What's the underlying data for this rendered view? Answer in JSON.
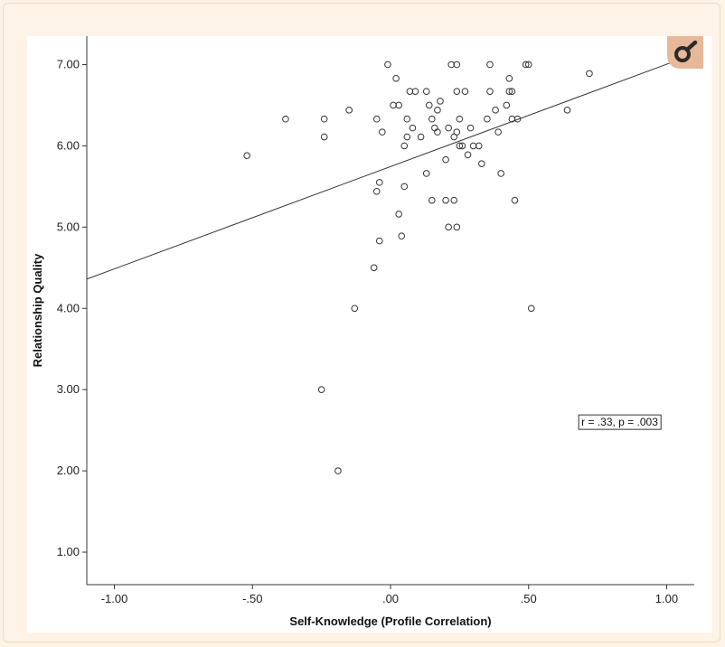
{
  "colors": {
    "page_bg": "#fdf3e7",
    "plot_bg": "#ffffff",
    "marker_stroke": "#333333",
    "line": "#333333",
    "badge_bg": "#e7b89a",
    "badge_icon": "#2a2a2a"
  },
  "icons": {
    "corner_badge": "magnifier-icon"
  },
  "chart_data": {
    "type": "scatter",
    "xlabel": "Self-Knowledge (Profile Correlation)",
    "ylabel": "Relationship Quality",
    "xlim": [
      -1.1,
      1.1
    ],
    "ylim": [
      0.6,
      7.35
    ],
    "x_ticks": [
      -1.0,
      -0.5,
      0.0,
      0.5,
      1.0
    ],
    "x_tick_labels": [
      "-1.00",
      "-.50",
      ".00",
      ".50",
      "1.00"
    ],
    "y_ticks": [
      1,
      2,
      3,
      4,
      5,
      6,
      7
    ],
    "y_tick_labels": [
      "1.00",
      "2.00",
      "3.00",
      "4.00",
      "5.00",
      "6.00",
      "7.00"
    ],
    "grid": false,
    "fit_line": {
      "x": [
        -1.1,
        1.1
      ],
      "y": [
        4.36,
        7.13
      ]
    },
    "annotation": "r = .33, p = .003",
    "annotation_position": {
      "x": 0.83,
      "y": 2.6
    },
    "points": [
      {
        "x": -0.52,
        "y": 5.88
      },
      {
        "x": -0.38,
        "y": 6.33
      },
      {
        "x": -0.24,
        "y": 6.33
      },
      {
        "x": -0.24,
        "y": 6.11
      },
      {
        "x": -0.25,
        "y": 3.0
      },
      {
        "x": -0.19,
        "y": 2.0
      },
      {
        "x": -0.15,
        "y": 6.44
      },
      {
        "x": -0.13,
        "y": 4.0
      },
      {
        "x": -0.06,
        "y": 4.5
      },
      {
        "x": -0.05,
        "y": 5.44
      },
      {
        "x": -0.04,
        "y": 5.55
      },
      {
        "x": -0.04,
        "y": 4.83
      },
      {
        "x": -0.05,
        "y": 6.33
      },
      {
        "x": -0.03,
        "y": 6.17
      },
      {
        "x": -0.01,
        "y": 7.0
      },
      {
        "x": 0.01,
        "y": 6.5
      },
      {
        "x": 0.02,
        "y": 6.83
      },
      {
        "x": 0.03,
        "y": 6.5
      },
      {
        "x": 0.03,
        "y": 5.16
      },
      {
        "x": 0.04,
        "y": 4.89
      },
      {
        "x": 0.05,
        "y": 5.5
      },
      {
        "x": 0.05,
        "y": 6.0
      },
      {
        "x": 0.06,
        "y": 6.11
      },
      {
        "x": 0.06,
        "y": 6.33
      },
      {
        "x": 0.07,
        "y": 6.67
      },
      {
        "x": 0.08,
        "y": 6.22
      },
      {
        "x": 0.09,
        "y": 6.67
      },
      {
        "x": 0.11,
        "y": 6.11
      },
      {
        "x": 0.13,
        "y": 5.66
      },
      {
        "x": 0.13,
        "y": 6.67
      },
      {
        "x": 0.14,
        "y": 6.5
      },
      {
        "x": 0.15,
        "y": 6.33
      },
      {
        "x": 0.15,
        "y": 5.33
      },
      {
        "x": 0.16,
        "y": 6.22
      },
      {
        "x": 0.17,
        "y": 6.44
      },
      {
        "x": 0.17,
        "y": 6.17
      },
      {
        "x": 0.18,
        "y": 6.55
      },
      {
        "x": 0.2,
        "y": 5.83
      },
      {
        "x": 0.2,
        "y": 5.33
      },
      {
        "x": 0.21,
        "y": 5.0
      },
      {
        "x": 0.21,
        "y": 6.22
      },
      {
        "x": 0.22,
        "y": 7.0
      },
      {
        "x": 0.23,
        "y": 6.11
      },
      {
        "x": 0.23,
        "y": 5.33
      },
      {
        "x": 0.24,
        "y": 5.0
      },
      {
        "x": 0.24,
        "y": 6.17
      },
      {
        "x": 0.24,
        "y": 7.0
      },
      {
        "x": 0.24,
        "y": 6.67
      },
      {
        "x": 0.25,
        "y": 6.0
      },
      {
        "x": 0.25,
        "y": 6.33
      },
      {
        "x": 0.26,
        "y": 6.0
      },
      {
        "x": 0.27,
        "y": 6.67
      },
      {
        "x": 0.28,
        "y": 5.89
      },
      {
        "x": 0.29,
        "y": 6.22
      },
      {
        "x": 0.3,
        "y": 6.0
      },
      {
        "x": 0.32,
        "y": 6.0
      },
      {
        "x": 0.33,
        "y": 5.78
      },
      {
        "x": 0.35,
        "y": 6.33
      },
      {
        "x": 0.36,
        "y": 6.67
      },
      {
        "x": 0.36,
        "y": 7.0
      },
      {
        "x": 0.38,
        "y": 6.44
      },
      {
        "x": 0.39,
        "y": 6.17
      },
      {
        "x": 0.4,
        "y": 5.66
      },
      {
        "x": 0.42,
        "y": 6.5
      },
      {
        "x": 0.43,
        "y": 6.83
      },
      {
        "x": 0.43,
        "y": 6.67
      },
      {
        "x": 0.44,
        "y": 6.33
      },
      {
        "x": 0.44,
        "y": 6.67
      },
      {
        "x": 0.45,
        "y": 5.33
      },
      {
        "x": 0.46,
        "y": 6.33
      },
      {
        "x": 0.49,
        "y": 7.0
      },
      {
        "x": 0.5,
        "y": 7.0
      },
      {
        "x": 0.51,
        "y": 4.0
      },
      {
        "x": 0.64,
        "y": 6.44
      },
      {
        "x": 0.72,
        "y": 6.89
      }
    ]
  }
}
